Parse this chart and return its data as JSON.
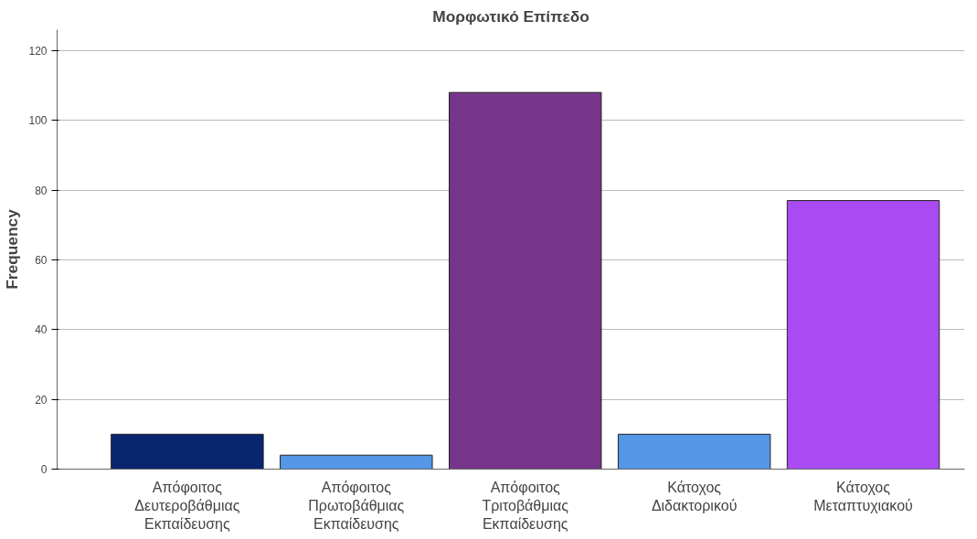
{
  "chart_data": {
    "type": "bar",
    "title": "Μορφωτικό Επίπεδο",
    "ylabel": "Frequency",
    "categories": [
      "Απόφοιτος Δευτεροβάθμιας Εκπαίδευσης",
      "Απόφοιτος Πρωτοβάθμιας Εκπαίδευσης",
      "Απόφοιτος Τριτοβάθμιας Εκπαίδευσης",
      "Κάτοχος Διδακτορικού",
      "Κάτοχος Μεταπτυχιακού"
    ],
    "values": [
      10,
      4,
      108,
      10,
      77
    ],
    "colors": [
      "#0a2570",
      "#5596e6",
      "#773589",
      "#5596e6",
      "#a94af2"
    ],
    "ylim": [
      0,
      126
    ],
    "yticks": [
      0,
      20,
      40,
      60,
      80,
      100,
      120
    ],
    "grid": "y"
  }
}
